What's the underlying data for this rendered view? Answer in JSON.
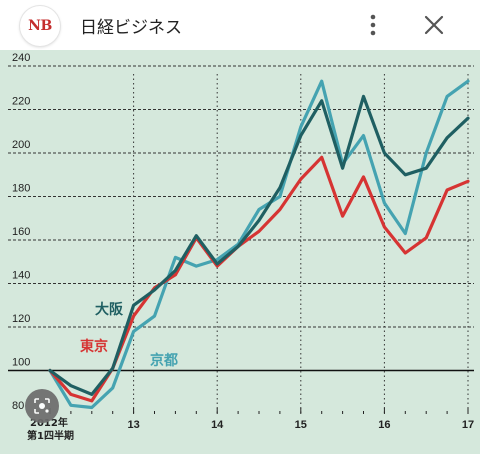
{
  "header": {
    "logo_text": "NB",
    "title": "日経ビジネス",
    "more_icon": "more-vert-icon",
    "close_icon": "close-icon"
  },
  "colors": {
    "chart_background": "#d5e8dc",
    "grid": "#333333",
    "osaka": "#1f5f62",
    "tokyo": "#d63433",
    "kyoto": "#45a3b1",
    "logo_red": "#c42d2d"
  },
  "chart_data": {
    "type": "line",
    "ylim": [
      80,
      240
    ],
    "yticks": [
      "80",
      "100",
      "120",
      "140",
      "160",
      "180",
      "200",
      "220",
      "240"
    ],
    "x_tick_labels": [
      "2012年",
      "第1四半期",
      "13",
      "14",
      "15",
      "16",
      "17"
    ],
    "x": [
      "2012Q1",
      "2012Q2",
      "2012Q3",
      "2012Q4",
      "2013Q1",
      "2013Q2",
      "2013Q3",
      "2013Q4",
      "2014Q1",
      "2014Q2",
      "2014Q3",
      "2014Q4",
      "2015Q1",
      "2015Q2",
      "2015Q3",
      "2015Q4",
      "2016Q1",
      "2016Q2",
      "2016Q3",
      "2016Q4",
      "2017Q1"
    ],
    "reference_line": 100,
    "series": [
      {
        "name": "大阪",
        "values": [
          100,
          93,
          89,
          101,
          130,
          137,
          146,
          162,
          149,
          157,
          169,
          184,
          208,
          224,
          193,
          226,
          200,
          190,
          193,
          207,
          216
        ]
      },
      {
        "name": "東京",
        "values": [
          100,
          89,
          86,
          101,
          125,
          138,
          144,
          161,
          148,
          157,
          164,
          174,
          188,
          198,
          171,
          189,
          166,
          154,
          161,
          183,
          187
        ]
      },
      {
        "name": "京都",
        "values": [
          100,
          84,
          83,
          92,
          118,
          125,
          152,
          148,
          151,
          158,
          174,
          180,
          212,
          233,
          195,
          208,
          177,
          163,
          200,
          226,
          233
        ]
      }
    ]
  }
}
